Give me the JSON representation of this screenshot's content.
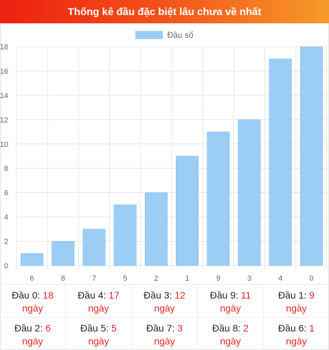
{
  "header": {
    "title": "Thống kê đầu đặc biệt lâu chưa về nhất"
  },
  "legend": {
    "label": "Đầu số"
  },
  "colors": {
    "bar": "#9ccdf4",
    "bar_stroke": "#7fbbea",
    "grid": "#e6e6e6",
    "tick": "#666666",
    "accent_red": "#e02424"
  },
  "chart_data": {
    "type": "bar",
    "categories": [
      "6",
      "8",
      "7",
      "5",
      "2",
      "1",
      "9",
      "3",
      "4",
      "0"
    ],
    "series": [
      {
        "name": "Đầu số",
        "values": [
          1,
          2,
          3,
          5,
          6,
          9,
          11,
          12,
          17,
          18
        ]
      }
    ],
    "y_ticks": [
      "0",
      "2",
      "4",
      "6",
      "8",
      "10",
      "12",
      "14",
      "16",
      "18"
    ],
    "ylim": [
      0,
      18
    ],
    "grid": true,
    "legend_position": "top"
  },
  "stats": {
    "rows": [
      [
        {
          "label": "Đầu 0: ",
          "value": "18",
          "unit": "ngày"
        },
        {
          "label": "Đầu 4: ",
          "value": "17",
          "unit": "ngày"
        },
        {
          "label": "Đầu 3: ",
          "value": "12",
          "unit": "ngày"
        },
        {
          "label": "Đầu 9: ",
          "value": "11",
          "unit": "ngày"
        },
        {
          "label": "Đầu 1: ",
          "value": "9",
          "unit": "ngày"
        }
      ],
      [
        {
          "label": "Đầu 2: ",
          "value": "6",
          "unit": "ngày"
        },
        {
          "label": "Đầu 5: ",
          "value": "5",
          "unit": "ngày"
        },
        {
          "label": "Đầu 7: ",
          "value": "3",
          "unit": "ngày"
        },
        {
          "label": "Đầu 8: ",
          "value": "2",
          "unit": "ngày"
        },
        {
          "label": "Đầu 6: ",
          "value": "1",
          "unit": "ngày"
        }
      ]
    ]
  }
}
